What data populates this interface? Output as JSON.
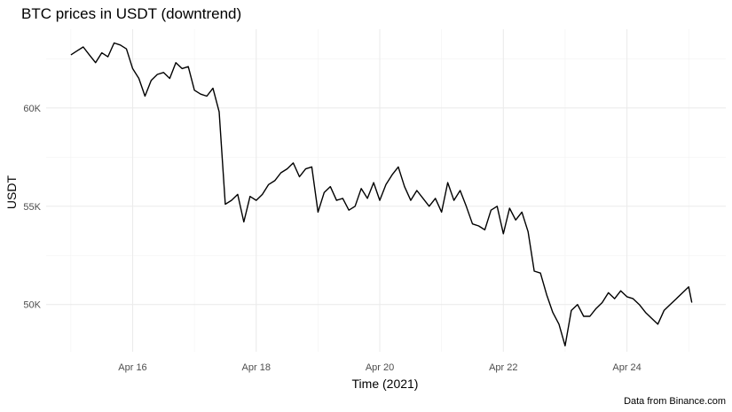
{
  "chart_data": {
    "type": "line",
    "title": "BTC prices in USDT (downtrend)",
    "xlabel": "Time (2021)",
    "ylabel": "USDT",
    "caption": "Data from Binance.com",
    "x_ticks": [
      {
        "value": 16,
        "label": "Apr 16"
      },
      {
        "value": 18,
        "label": "Apr 18"
      },
      {
        "value": 20,
        "label": "Apr 20"
      },
      {
        "value": 22,
        "label": "Apr 22"
      },
      {
        "value": 24,
        "label": "Apr 24"
      }
    ],
    "y_ticks": [
      {
        "value": 50000,
        "label": "50K"
      },
      {
        "value": 55000,
        "label": "55K"
      },
      {
        "value": 60000,
        "label": "60K"
      }
    ],
    "xlim": [
      14.6,
      25.6
    ],
    "ylim": [
      47600,
      64000
    ],
    "grid": true,
    "series": [
      {
        "color": "#000000",
        "x": [
          15.0,
          15.1,
          15.2,
          15.3,
          15.4,
          15.5,
          15.6,
          15.7,
          15.8,
          15.9,
          16.0,
          16.1,
          16.2,
          16.3,
          16.4,
          16.5,
          16.6,
          16.7,
          16.8,
          16.9,
          17.0,
          17.1,
          17.2,
          17.3,
          17.4,
          17.5,
          17.6,
          17.7,
          17.8,
          17.9,
          18.0,
          18.1,
          18.2,
          18.3,
          18.4,
          18.5,
          18.6,
          18.7,
          18.8,
          18.9,
          19.0,
          19.1,
          19.2,
          19.3,
          19.4,
          19.5,
          19.6,
          19.7,
          19.8,
          19.9,
          20.0,
          20.1,
          20.2,
          20.3,
          20.4,
          20.5,
          20.6,
          20.7,
          20.8,
          20.9,
          21.0,
          21.1,
          21.2,
          21.3,
          21.4,
          21.5,
          21.6,
          21.7,
          21.8,
          21.9,
          22.0,
          22.1,
          22.2,
          22.3,
          22.4,
          22.5,
          22.6,
          22.7,
          22.8,
          22.9,
          23.0,
          23.1,
          23.2,
          23.3,
          23.4,
          23.5,
          23.6,
          23.7,
          23.8,
          23.9,
          24.0,
          24.1,
          24.2,
          24.3,
          24.4,
          24.5,
          24.6,
          24.7,
          24.8,
          24.9,
          25.0,
          25.05
        ],
        "y": [
          62700,
          62900,
          63100,
          62700,
          62300,
          62800,
          62600,
          63300,
          63200,
          63000,
          62000,
          61500,
          60600,
          61400,
          61700,
          61800,
          61500,
          62300,
          62000,
          62100,
          60900,
          60700,
          60600,
          61000,
          59800,
          55100,
          55300,
          55600,
          54200,
          55500,
          55300,
          55600,
          56100,
          56300,
          56700,
          56900,
          57200,
          56500,
          56900,
          57000,
          54700,
          55700,
          56000,
          55300,
          55400,
          54800,
          55000,
          55900,
          55400,
          56200,
          55300,
          56100,
          56600,
          57000,
          56000,
          55300,
          55800,
          55400,
          55000,
          55400,
          54700,
          56200,
          55300,
          55800,
          55000,
          54100,
          54000,
          53800,
          54800,
          55000,
          53600,
          54900,
          54300,
          54700,
          53700,
          51700,
          51600,
          50500,
          49600,
          49000,
          47900,
          49700,
          50000,
          49400,
          49400,
          49800,
          50100,
          50600,
          50300,
          50700,
          50400,
          50300,
          50000,
          49600,
          49300,
          49000,
          49700,
          50000,
          50300,
          50600,
          50900,
          50100
        ]
      }
    ]
  }
}
